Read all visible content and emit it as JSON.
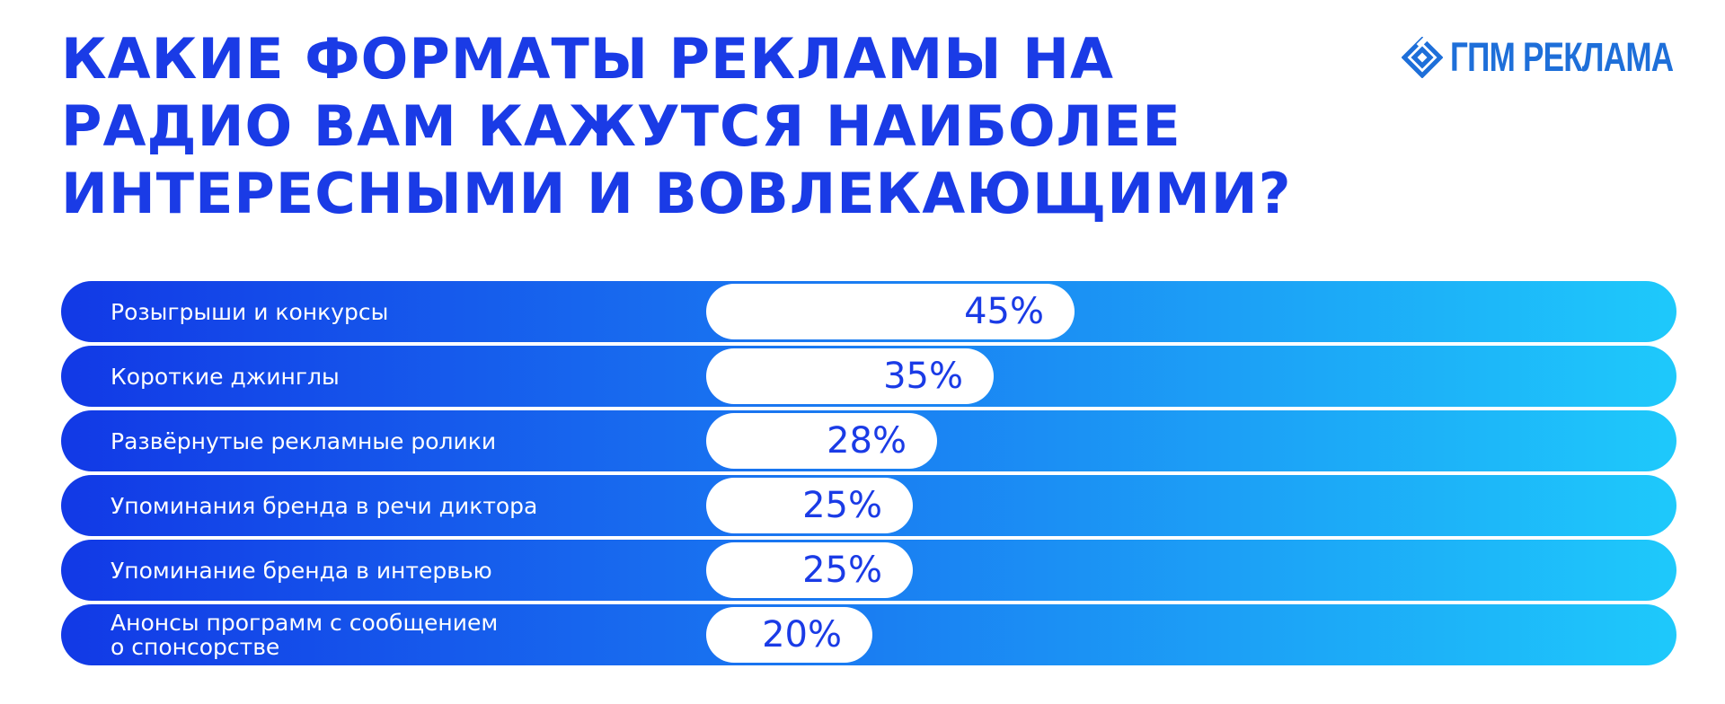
{
  "header": {
    "title_lines": [
      "КАКИЕ ФОРМАТЫ РЕКЛАМЫ НА",
      "РАДИО ВАМ КАЖУТСЯ НАИБОЛЕЕ",
      "ИНТЕРЕСНЫМИ И ВОВЛЕКАЮЩИМИ?"
    ],
    "logo_text": "ГПМ РЕКЛАМА",
    "logo_icon": "gpm-diamond-logo-icon"
  },
  "colors": {
    "title": "#1a3be6",
    "logo": "#1e6fd9",
    "bar_gradient_start": "#1239e6",
    "bar_gradient_end": "#1ec9fb",
    "pill": "#ffffff",
    "label": "#ffffff"
  },
  "chart_data": {
    "type": "bar",
    "orientation": "horizontal",
    "title": "КАКИЕ ФОРМАТЫ РЕКЛАМЫ НА РАДИО ВАМ КАЖУТСЯ НАИБОЛЕЕ ИНТЕРЕСНЫМИ И ВОВЛЕКАЮЩИМИ?",
    "unit": "%",
    "categories": [
      "Розыгрыши и конкурсы",
      "Короткие джинглы",
      "Развёрнутые рекламные ролики",
      "Упоминания бренда в речи диктора",
      "Упоминание бренда в интервью",
      "Анонсы программ с сообщением о спонсорстве"
    ],
    "values": [
      45,
      35,
      28,
      25,
      25,
      20
    ],
    "value_labels": [
      "45%",
      "35%",
      "28%",
      "25%",
      "25%",
      "20%"
    ],
    "label_lines": [
      [
        "Розыгрыши и конкурсы"
      ],
      [
        "Короткие джинглы"
      ],
      [
        "Развёрнутые рекламные ролики"
      ],
      [
        "Упоминания бренда в речи диктора"
      ],
      [
        "Упоминание бренда в интервью"
      ],
      [
        "Анонсы программ с сообщением",
        "о спонсорстве"
      ]
    ]
  }
}
